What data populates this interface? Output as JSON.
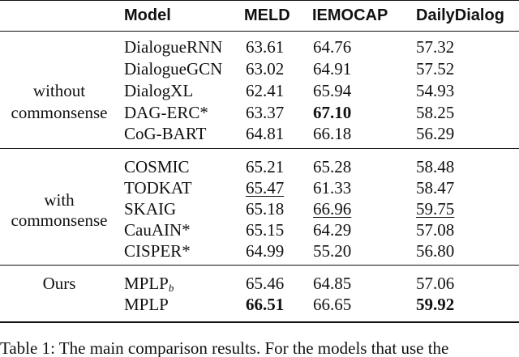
{
  "table": {
    "headers": [
      "Model",
      "MELD",
      "IEMOCAP",
      "DailyDialog"
    ],
    "groups": [
      {
        "label_lines": [
          "without",
          "commonsense"
        ],
        "rows": [
          {
            "model": "DialogueRNN",
            "meld": "63.61",
            "iemocap": "64.76",
            "daily": "57.32"
          },
          {
            "model": "DialogueGCN",
            "meld": "63.02",
            "iemocap": "64.91",
            "daily": "57.52"
          },
          {
            "model": "DialogXL",
            "meld": "62.41",
            "iemocap": "65.94",
            "daily": "54.93"
          },
          {
            "model": "DAG-ERC*",
            "meld": "63.37",
            "iemocap": "67.10",
            "daily": "58.25"
          },
          {
            "model": "CoG-BART",
            "meld": "64.81",
            "iemocap": "66.18",
            "daily": "56.29"
          }
        ]
      },
      {
        "label_lines": [
          "with",
          "commonsense"
        ],
        "rows": [
          {
            "model": "COSMIC",
            "meld": "65.21",
            "iemocap": "65.28",
            "daily": "58.48"
          },
          {
            "model": "TODKAT",
            "meld": "65.47",
            "iemocap": "61.33",
            "daily": "58.47"
          },
          {
            "model": "SKAIG",
            "meld": "65.18",
            "iemocap": "66.96",
            "daily": "59.75"
          },
          {
            "model": "CauAIN*",
            "meld": "65.15",
            "iemocap": "64.29",
            "daily": "57.08"
          },
          {
            "model": "CISPER*",
            "meld": "64.99",
            "iemocap": "55.20",
            "daily": "56.80"
          }
        ]
      },
      {
        "label_lines": [
          "Ours"
        ],
        "rows": [
          {
            "model": "MPLP",
            "model_sub": "b",
            "meld": "65.46",
            "iemocap": "64.85",
            "daily": "57.06"
          },
          {
            "model": "MPLP",
            "meld": "66.51",
            "iemocap": "66.65",
            "daily": "59.92"
          }
        ]
      }
    ]
  },
  "caption": "Table 1: The main comparison results. For the models that use the"
}
